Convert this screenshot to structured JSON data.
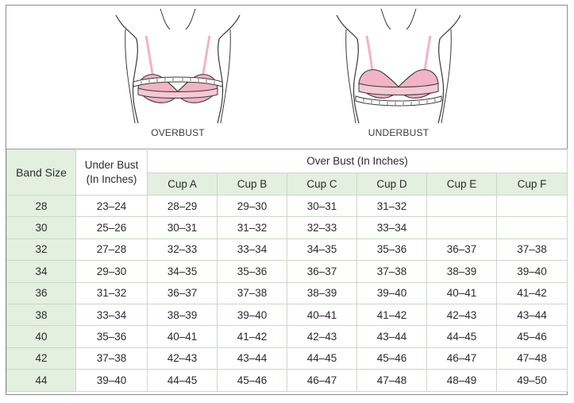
{
  "figures": {
    "overbust_label": "OVERBUST",
    "underbust_label": "UNDERBUST"
  },
  "table": {
    "band_header": "Band Size",
    "under_header_line1": "Under Bust",
    "under_header_line2": "(In Inches)",
    "over_header": "Over Bust (In Inches)",
    "cups": [
      "Cup A",
      "Cup B",
      "Cup C",
      "Cup D",
      "Cup E",
      "Cup F"
    ],
    "rows": [
      {
        "band": "28",
        "under": "23–24",
        "cups": [
          "28–29",
          "29–30",
          "30–31",
          "31–32",
          "",
          ""
        ]
      },
      {
        "band": "30",
        "under": "25–26",
        "cups": [
          "30–31",
          "31–32",
          "32–33",
          "33–34",
          "",
          ""
        ]
      },
      {
        "band": "32",
        "under": "27–28",
        "cups": [
          "32–33",
          "33–34",
          "34–35",
          "35–36",
          "36–37",
          "37–38"
        ]
      },
      {
        "band": "34",
        "under": "29–30",
        "cups": [
          "34–35",
          "35–36",
          "36–37",
          "37–38",
          "38–39",
          "39–40"
        ]
      },
      {
        "band": "36",
        "under": "31–32",
        "cups": [
          "36–37",
          "37–38",
          "38–39",
          "39–40",
          "40–41",
          "41–42"
        ]
      },
      {
        "band": "38",
        "under": "33–34",
        "cups": [
          "38–39",
          "39–40",
          "40–41",
          "41–42",
          "42–43",
          "43–44"
        ]
      },
      {
        "band": "40",
        "under": "35–36",
        "cups": [
          "40–41",
          "41–42",
          "42–43",
          "43–44",
          "44–45",
          "45–46"
        ]
      },
      {
        "band": "42",
        "under": "37–38",
        "cups": [
          "42–43",
          "43–44",
          "44–45",
          "45–46",
          "46–47",
          "47–48"
        ]
      },
      {
        "band": "44",
        "under": "39–40",
        "cups": [
          "44–45",
          "45–46",
          "46–47",
          "47–48",
          "48–49",
          "49–50"
        ]
      }
    ]
  },
  "colors": {
    "header_fill": "#e3efdf",
    "garment_pink": "#f2b3c6",
    "outline": "#3a3a3a"
  }
}
